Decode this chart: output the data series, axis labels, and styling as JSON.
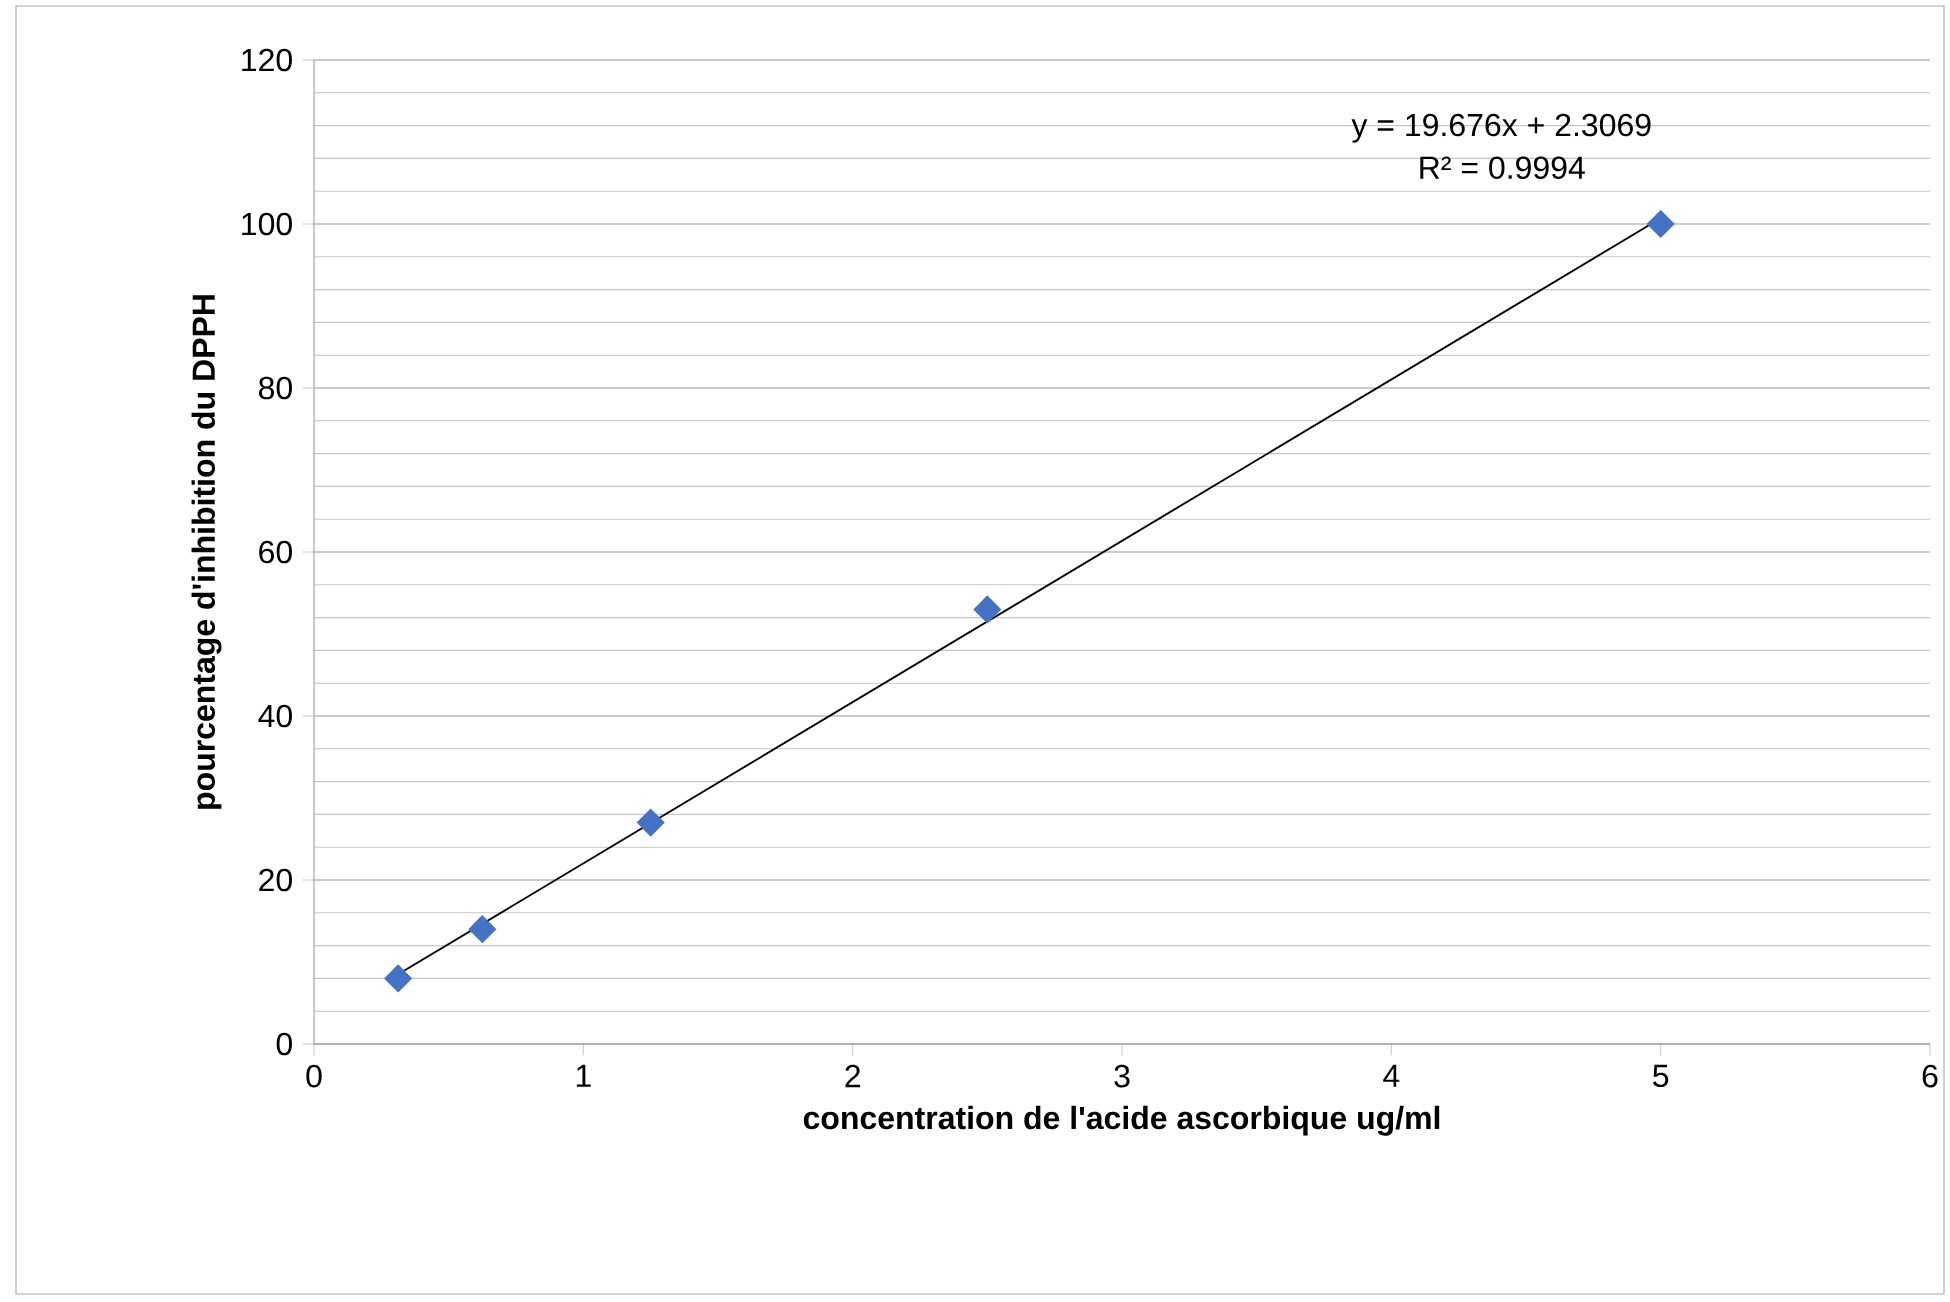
{
  "chart_data": {
    "type": "scatter",
    "xlabel": "concentration de l'acide ascorbique ug/ml",
    "ylabel": "pourcentage d'inhibition du DPPH",
    "x": [
      0.3125,
      0.625,
      1.25,
      2.5,
      5
    ],
    "series": [
      {
        "color": "#4472c4",
        "values": [
          8,
          14,
          27,
          53,
          100
        ],
        "marker": "diamond"
      },
      {
        "type": "line",
        "color": "#000000",
        "x": [
          0.3125,
          5
        ],
        "values": [
          8.5,
          100.7
        ],
        "marker": "none"
      }
    ],
    "xlim": [
      0,
      6
    ],
    "ylim": [
      0,
      120
    ],
    "xticks": [
      0,
      1,
      2,
      3,
      4,
      5,
      6
    ],
    "yticks": [
      0,
      20,
      40,
      60,
      80,
      100,
      120
    ],
    "grid": "y",
    "annotations": [
      "y = 19.676x + 2.3069",
      "R² = 0.9994"
    ]
  }
}
